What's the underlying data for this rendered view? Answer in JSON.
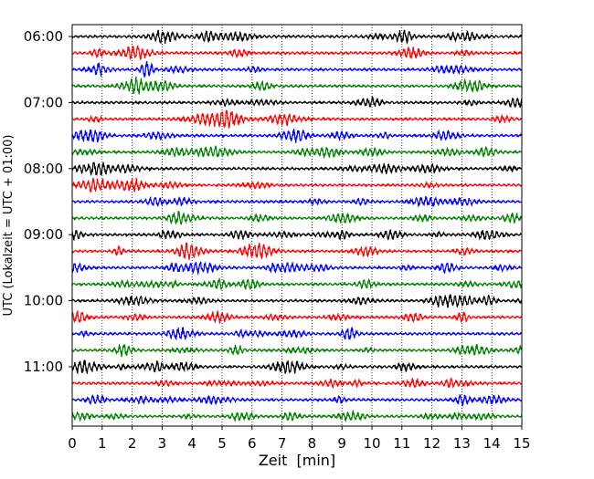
{
  "chart_data": {
    "type": "line",
    "title": "",
    "xlabel": "Zeit  [min]",
    "ylabel": "UTC (Lokalzeit = UTC + 01:00)",
    "xlim": [
      0,
      15
    ],
    "x_ticks": [
      "0",
      "1",
      "2",
      "3",
      "4",
      "5",
      "6",
      "7",
      "8",
      "9",
      "10",
      "11",
      "12",
      "13",
      "14",
      "15"
    ],
    "y_tick_labels": [
      "06:00",
      "07:00",
      "08:00",
      "09:00",
      "10:00",
      "11:00"
    ],
    "grid": "vertical dotted",
    "trace_start": "06:00",
    "trace_interval_min": 15,
    "trace_count": 24,
    "series": [
      {
        "color": "#000000",
        "traces": [
          "06:00",
          "07:00",
          "08:00",
          "09:00",
          "10:00",
          "11:00"
        ]
      },
      {
        "color": "#ff0000",
        "traces": [
          "06:15",
          "07:15",
          "08:15",
          "09:15",
          "10:15",
          "11:15"
        ]
      },
      {
        "color": "#0000ff",
        "traces": [
          "06:30",
          "07:30",
          "08:30",
          "09:30",
          "10:30",
          "11:30"
        ]
      },
      {
        "color": "#008000",
        "traces": [
          "06:45",
          "07:45",
          "08:45",
          "09:45",
          "10:45",
          "11:45"
        ]
      }
    ]
  }
}
